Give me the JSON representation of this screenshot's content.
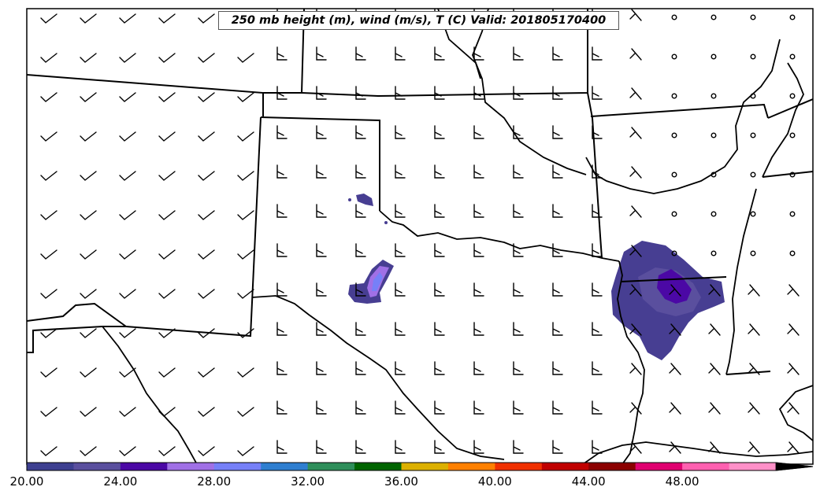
{
  "title": "250 mb height (m), wind (m/s), T (C) Valid: 201805170400",
  "colorbar": {
    "tick_labels": [
      "20.00",
      "24.00",
      "28.00",
      "32.00",
      "36.00",
      "40.00",
      "44.00",
      "48.00"
    ],
    "min": 20,
    "max": 52,
    "step": 2,
    "extend": "max",
    "colors": [
      "#3d3f90",
      "#5a4f9e",
      "#4b08a5",
      "#a070e6",
      "#7680f8",
      "#2e7ed0",
      "#2e8e5a",
      "#006400",
      "#dcb000",
      "#ff8000",
      "#f03000",
      "#c00000",
      "#8b0000",
      "#e00070",
      "#ff60b0",
      "#ff90c8"
    ]
  }
}
